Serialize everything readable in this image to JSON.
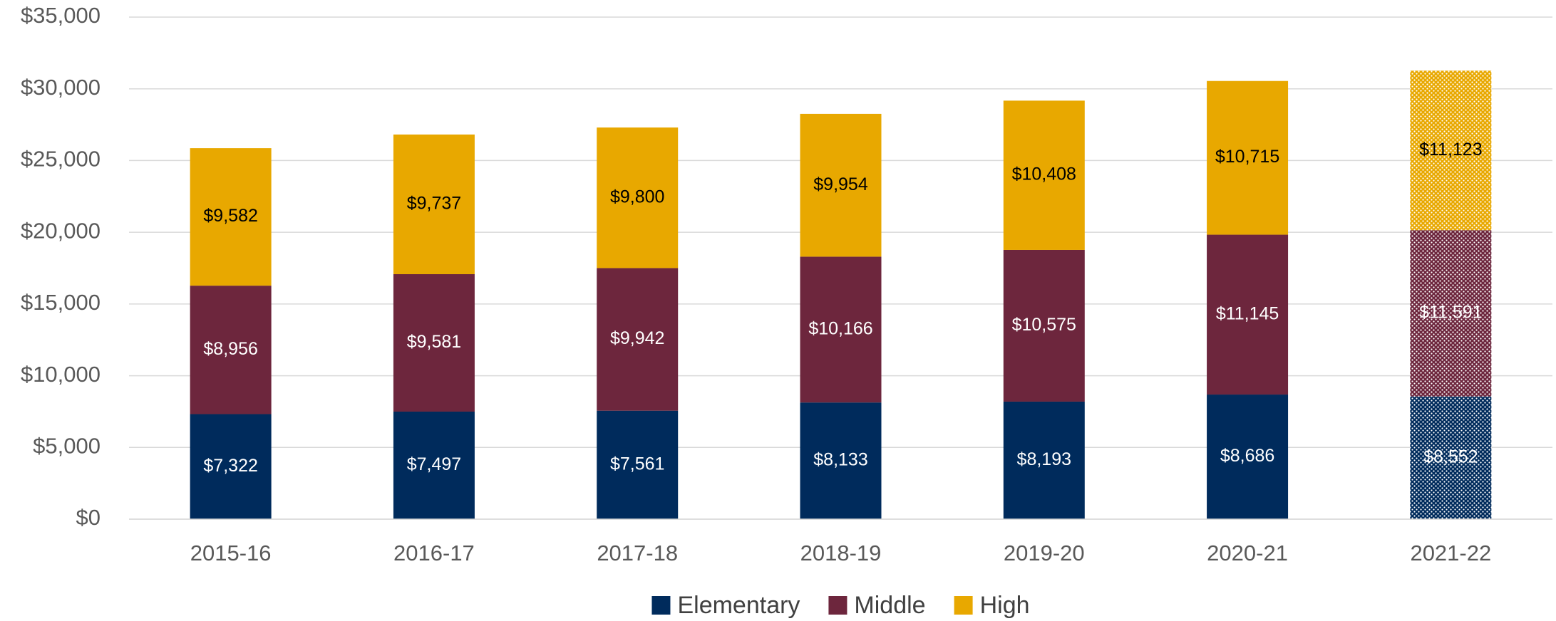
{
  "chart_data": {
    "type": "stacked_bar",
    "categories": [
      "2015-16",
      "2016-17",
      "2017-18",
      "2018-19",
      "2019-20",
      "2020-21",
      "2021-22"
    ],
    "dotted": [
      false,
      false,
      false,
      false,
      false,
      false,
      true
    ],
    "series": [
      {
        "name": "Elementary",
        "color": "#002b5c",
        "label_color": "#ffffff",
        "values": [
          7322,
          7497,
          7561,
          8133,
          8193,
          8686,
          8552
        ],
        "value_labels": [
          "$7,322",
          "$7,497",
          "$7,561",
          "$8,133",
          "$8,193",
          "$8,686",
          "$8,552"
        ]
      },
      {
        "name": "Middle",
        "color": "#6d263d",
        "label_color": "#ffffff",
        "values": [
          8956,
          9581,
          9942,
          10166,
          10575,
          11145,
          11591
        ],
        "value_labels": [
          "$8,956",
          "$9,581",
          "$9,942",
          "$10,166",
          "$10,575",
          "$11,145",
          "$11,591"
        ]
      },
      {
        "name": "High",
        "color": "#e8a800",
        "label_color": "#000000",
        "values": [
          9582,
          9737,
          9800,
          9954,
          10408,
          10715,
          11123
        ],
        "value_labels": [
          "$9,582",
          "$9,737",
          "$9,800",
          "$9,954",
          "$10,408",
          "$10,715",
          "$11,123"
        ]
      }
    ],
    "ylim": [
      0,
      35000
    ],
    "yticks": [
      {
        "value": 0,
        "label": "$0"
      },
      {
        "value": 5000,
        "label": "$5,000"
      },
      {
        "value": 10000,
        "label": "$10,000"
      },
      {
        "value": 15000,
        "label": "$15,000"
      },
      {
        "value": 20000,
        "label": "$20,000"
      },
      {
        "value": 25000,
        "label": "$25,000"
      },
      {
        "value": 30000,
        "label": "$30,000"
      },
      {
        "value": 35000,
        "label": "$35,000"
      }
    ],
    "grid": true,
    "legend": "bottom"
  }
}
